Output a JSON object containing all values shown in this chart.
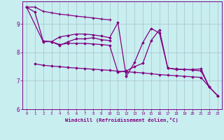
{
  "xlabel": "Windchill (Refroidissement éolien,°C)",
  "bg_color": "#c8eef0",
  "line_color": "#800080",
  "grid_color": "#a0b8c0",
  "axis_color": "#800080",
  "tick_color": "#800080",
  "xlim": [
    -0.5,
    23.5
  ],
  "ylim": [
    6,
    9.8
  ],
  "yticks": [
    6,
    7,
    8,
    9
  ],
  "xticks": [
    0,
    1,
    2,
    3,
    4,
    5,
    6,
    7,
    8,
    9,
    10,
    11,
    12,
    13,
    14,
    15,
    16,
    17,
    18,
    19,
    20,
    21,
    22,
    23
  ],
  "series": [
    {
      "x": [
        0,
        1,
        2,
        3,
        4,
        5,
        6,
        7,
        8,
        9,
        10
      ],
      "y": [
        9.6,
        9.6,
        9.45,
        9.4,
        9.35,
        9.32,
        9.28,
        9.25,
        9.22,
        9.18,
        9.15
      ],
      "marker": "+"
    },
    {
      "x": [
        2,
        3,
        4,
        5,
        6,
        7,
        8,
        9,
        10
      ],
      "y": [
        8.4,
        8.38,
        8.25,
        8.38,
        8.48,
        8.48,
        8.52,
        8.45,
        8.42
      ],
      "marker": "D"
    },
    {
      "x": [
        1,
        2,
        3,
        4,
        5,
        6,
        7,
        8,
        9,
        10,
        11,
        12,
        13,
        14,
        15,
        16,
        17,
        18,
        19,
        20,
        21,
        22,
        23
      ],
      "y": [
        7.6,
        7.55,
        7.52,
        7.5,
        7.47,
        7.45,
        7.43,
        7.41,
        7.39,
        7.37,
        7.34,
        7.32,
        7.3,
        7.28,
        7.25,
        7.22,
        7.2,
        7.18,
        7.16,
        7.14,
        7.12,
        6.78,
        6.48
      ],
      "marker": "D"
    },
    {
      "x": [
        0,
        1,
        2,
        3,
        4,
        5,
        6,
        7,
        8,
        9,
        10,
        11,
        12,
        13,
        14,
        15,
        16,
        17,
        18,
        19,
        20,
        21,
        22,
        23
      ],
      "y": [
        9.6,
        9.42,
        8.4,
        8.38,
        8.55,
        8.6,
        8.65,
        8.65,
        8.62,
        8.58,
        8.52,
        9.05,
        7.15,
        7.65,
        8.35,
        8.85,
        8.68,
        7.45,
        7.4,
        7.4,
        7.4,
        7.42,
        6.78,
        6.48
      ],
      "marker": "D"
    },
    {
      "x": [
        0,
        2,
        3,
        4,
        5,
        6,
        7,
        8,
        9,
        10,
        11,
        12,
        13,
        14,
        15,
        16,
        17,
        18,
        19,
        20,
        21,
        22,
        23
      ],
      "y": [
        9.6,
        8.38,
        8.38,
        8.28,
        8.32,
        8.32,
        8.32,
        8.3,
        8.28,
        8.25,
        7.3,
        7.35,
        7.5,
        7.62,
        8.42,
        8.8,
        7.45,
        7.42,
        7.4,
        7.38,
        7.35,
        6.78,
        6.48
      ],
      "marker": "D"
    }
  ]
}
